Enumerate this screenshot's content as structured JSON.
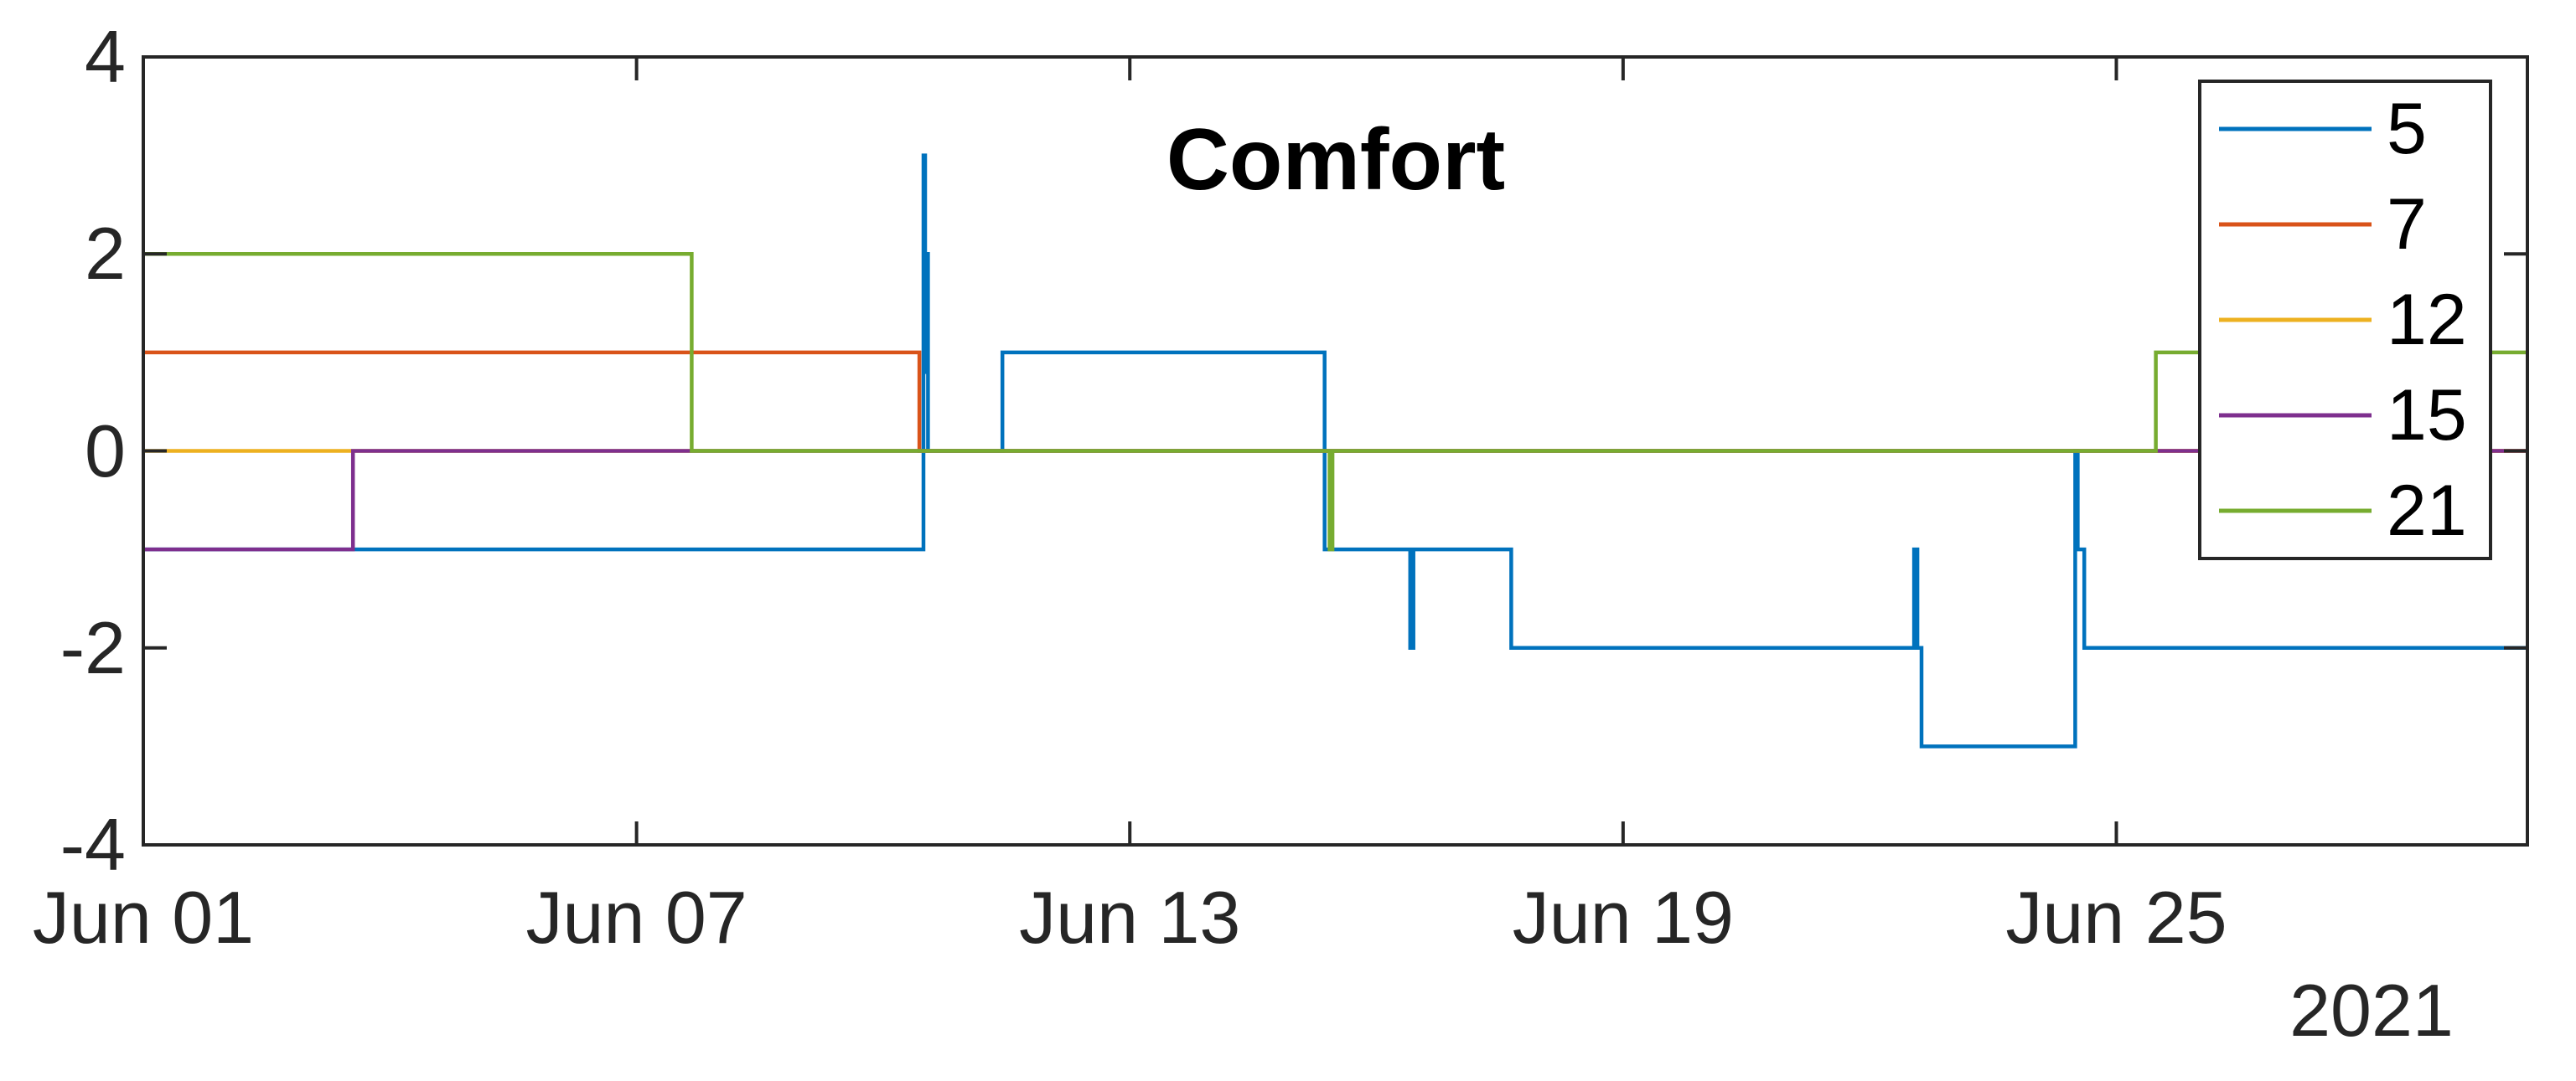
{
  "title": "Comfort",
  "year_label": "2021",
  "axis_color": "#262626",
  "background_color": "#ffffff",
  "legend": {
    "position": "upper-right",
    "entries": [
      {
        "label": "5",
        "color": "#0072BD"
      },
      {
        "label": "7",
        "color": "#D95319"
      },
      {
        "label": "12",
        "color": "#EDB120"
      },
      {
        "label": "15",
        "color": "#7E2F8E"
      },
      {
        "label": "21",
        "color": "#77AC30"
      }
    ]
  },
  "chart_data": {
    "type": "line",
    "title": "Comfort",
    "xlabel": "",
    "ylabel": "",
    "x_axis_year": "2021",
    "x_unit": "days since Jun 01 2021",
    "xlim_days": [
      0,
      29
    ],
    "ylim": [
      -4,
      4
    ],
    "grid": false,
    "legend_position": "upper-right",
    "x_ticks": [
      {
        "day": 0,
        "label": "Jun 01"
      },
      {
        "day": 6,
        "label": "Jun 07"
      },
      {
        "day": 12,
        "label": "Jun 13"
      },
      {
        "day": 18,
        "label": "Jun 19"
      },
      {
        "day": 24,
        "label": "Jun 25"
      }
    ],
    "y_ticks": [
      {
        "value": 4,
        "label": "4"
      },
      {
        "value": 2,
        "label": "2"
      },
      {
        "value": 0,
        "label": "0"
      },
      {
        "value": -2,
        "label": "-2"
      },
      {
        "value": -4,
        "label": "-4"
      }
    ],
    "series": [
      {
        "name": "5",
        "color": "#0072BD",
        "points_day_value": [
          [
            0,
            -1
          ],
          [
            9.49,
            -1
          ],
          [
            9.49,
            3
          ],
          [
            9.51,
            3
          ],
          [
            9.51,
            0.8
          ],
          [
            9.52,
            0.8
          ],
          [
            9.52,
            2
          ],
          [
            9.545,
            2
          ],
          [
            9.545,
            0
          ],
          [
            10.45,
            0
          ],
          [
            10.45,
            1
          ],
          [
            14.37,
            1
          ],
          [
            14.37,
            -1
          ],
          [
            15.41,
            -1
          ],
          [
            15.41,
            -2
          ],
          [
            15.45,
            -2
          ],
          [
            15.45,
            -1
          ],
          [
            16.64,
            -1
          ],
          [
            16.64,
            -2
          ],
          [
            21.54,
            -2
          ],
          [
            21.54,
            -1
          ],
          [
            21.58,
            -1
          ],
          [
            21.58,
            -2
          ],
          [
            21.63,
            -2
          ],
          [
            21.63,
            -3
          ],
          [
            23.5,
            -3
          ],
          [
            23.5,
            0
          ],
          [
            23.53,
            0
          ],
          [
            23.53,
            -1
          ],
          [
            23.61,
            -1
          ],
          [
            23.61,
            -2
          ],
          [
            29,
            -2
          ]
        ]
      },
      {
        "name": "7",
        "color": "#D95319",
        "points_day_value": [
          [
            0,
            1
          ],
          [
            9.44,
            1
          ],
          [
            9.44,
            0
          ],
          [
            29,
            0
          ]
        ]
      },
      {
        "name": "12",
        "color": "#EDB120",
        "points_day_value": [
          [
            0,
            0
          ],
          [
            29,
            0
          ]
        ]
      },
      {
        "name": "15",
        "color": "#7E2F8E",
        "points_day_value": [
          [
            0,
            -1
          ],
          [
            2.55,
            -1
          ],
          [
            2.55,
            0
          ],
          [
            29,
            0
          ]
        ]
      },
      {
        "name": "21",
        "color": "#77AC30",
        "points_day_value": [
          [
            0,
            2
          ],
          [
            6.67,
            2
          ],
          [
            6.67,
            0
          ],
          [
            14.43,
            0
          ],
          [
            14.43,
            -1
          ],
          [
            14.465,
            -1
          ],
          [
            14.465,
            0
          ],
          [
            24.48,
            0
          ],
          [
            24.48,
            1
          ],
          [
            29,
            1
          ]
        ]
      }
    ]
  }
}
